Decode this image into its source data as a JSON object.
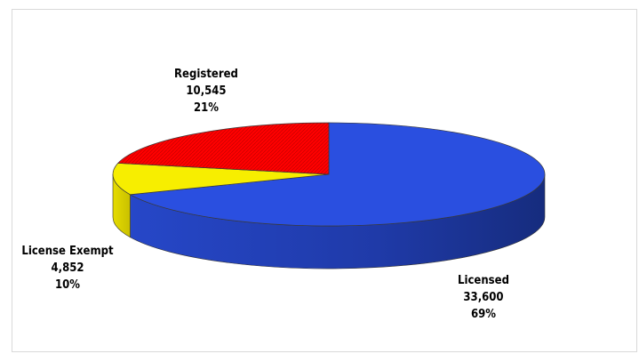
{
  "chart_data": {
    "type": "pie",
    "title_fragment": "",
    "style": "3d",
    "slices": [
      {
        "label": "Licensed",
        "value": 33600,
        "percent": "69%",
        "value_text": "33,600",
        "color": "#2a4fe0"
      },
      {
        "label": "License Exempt",
        "value": 4852,
        "percent": "10%",
        "value_text": "4,852",
        "color": "#f7ee00"
      },
      {
        "label": "Registered",
        "value": 10545,
        "percent": "21%",
        "value_text": "10,545",
        "color": "#ff0000"
      }
    ],
    "legend": "none"
  }
}
